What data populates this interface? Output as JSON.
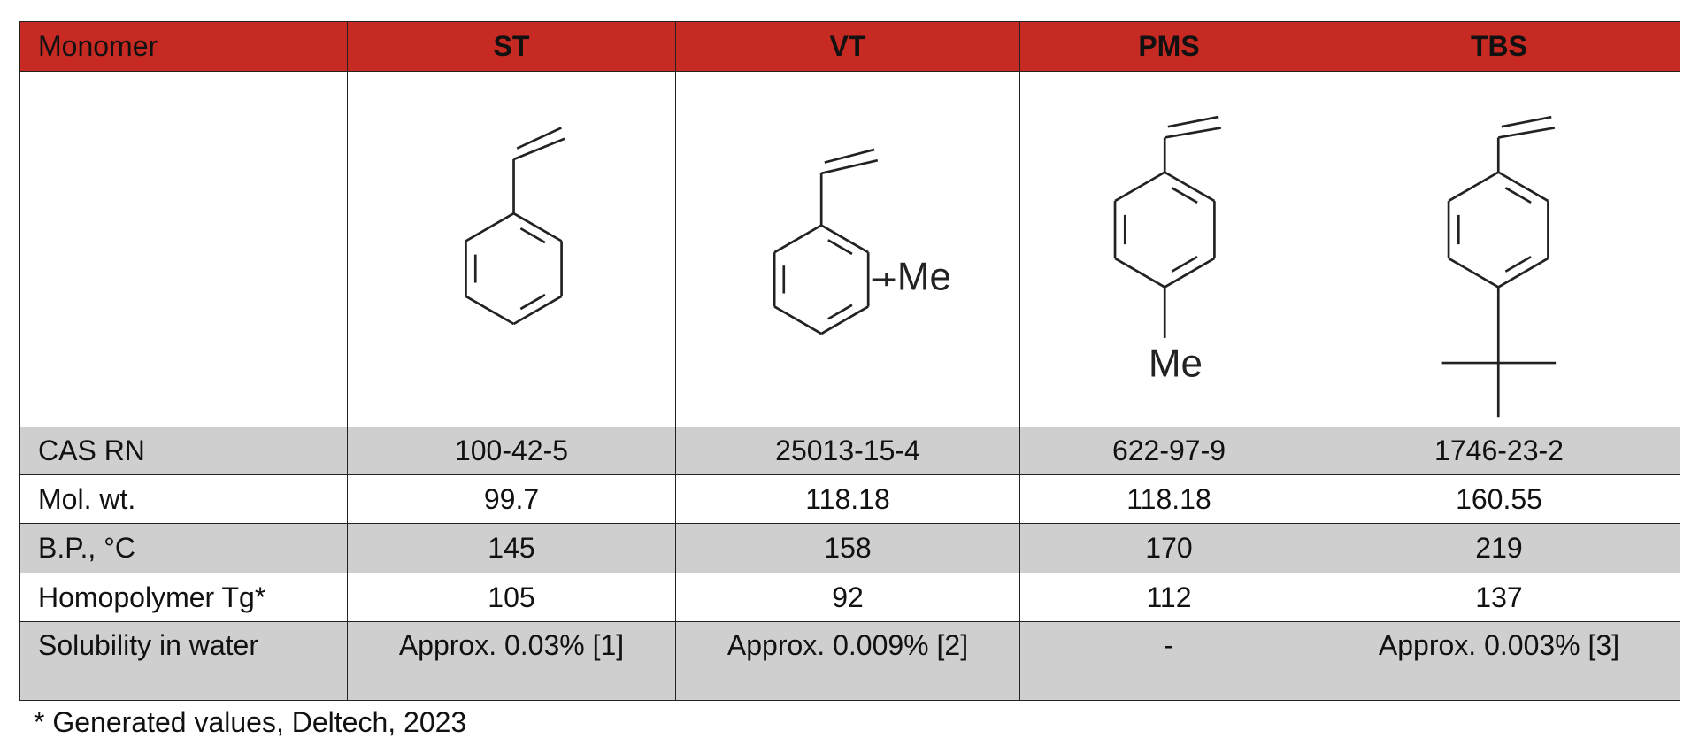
{
  "table": {
    "header": [
      "Monomer",
      "ST",
      "VT",
      "PMS",
      "TBS"
    ],
    "rows": [
      {
        "label": "CAS RN",
        "values": [
          "100-42-5",
          "25013-15-4",
          "622-97-9",
          "1746-23-2"
        ]
      },
      {
        "label": "Mol. wt.",
        "values": [
          99.7,
          118.18,
          118.18,
          160.55
        ]
      },
      {
        "label": "B.P., °C",
        "values": [
          145,
          158,
          170,
          219
        ]
      },
      {
        "label": "Homopolymer Tg*",
        "values": [
          105,
          92,
          112,
          137
        ]
      },
      {
        "label": "Solubility in water",
        "values": [
          "Approx. 0.03% [1]",
          "Approx. 0.009% [2]",
          "-",
          "Approx. 0.003% [3]"
        ]
      }
    ]
  },
  "structure_labels": {
    "vt": "Me",
    "pms": "Me"
  },
  "footnote": "* Generated values, Deltech, 2023"
}
